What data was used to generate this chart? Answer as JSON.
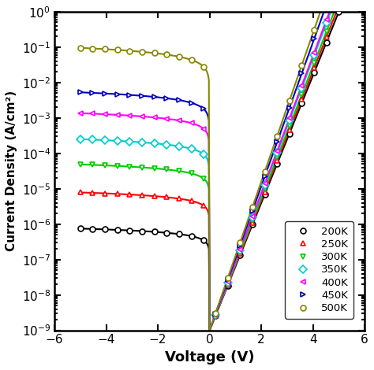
{
  "xlabel": "Voltage (V)",
  "ylabel": "Current Density (A/cm²)",
  "xlim": [
    -5.5,
    5.5
  ],
  "ylim": [
    1e-09,
    1.0
  ],
  "series": [
    {
      "label": "200K",
      "color": "#000000",
      "marker": "o",
      "J0": 1e-09,
      "n": 14.0,
      "T": 200,
      "Jrev": 5e-07,
      "Vrev_exp": 0.25
    },
    {
      "label": "250K",
      "color": "#ff0000",
      "marker": "^",
      "J0": 1e-09,
      "n": 11.0,
      "T": 250,
      "Jrev": 5e-06,
      "Vrev_exp": 0.28
    },
    {
      "label": "300K",
      "color": "#00cc00",
      "marker": "v",
      "J0": 1e-09,
      "n": 9.0,
      "T": 300,
      "Jrev": 3e-05,
      "Vrev_exp": 0.3
    },
    {
      "label": "350K",
      "color": "#00cccc",
      "marker": "D",
      "J0": 1e-09,
      "n": 7.5,
      "T": 350,
      "Jrev": 0.00015,
      "Vrev_exp": 0.32
    },
    {
      "label": "400K",
      "color": "#ff00ff",
      "marker": "<",
      "J0": 1e-09,
      "n": 6.5,
      "T": 400,
      "Jrev": 0.0008,
      "Vrev_exp": 0.33
    },
    {
      "label": "450K",
      "color": "#0000bb",
      "marker": ">",
      "J0": 1e-09,
      "n": 5.5,
      "T": 450,
      "Jrev": 0.003,
      "Vrev_exp": 0.35
    },
    {
      "label": "500K",
      "color": "#888800",
      "marker": "o",
      "J0": 1e-09,
      "n": 4.8,
      "T": 500,
      "Jrev": 0.05,
      "Vrev_exp": 0.4
    }
  ],
  "figsize": [
    4.74,
    4.7
  ],
  "dpi": 100,
  "bg_color": "#ffffff",
  "marker_size": 5,
  "linewidth": 1.5,
  "n_markers": 22
}
